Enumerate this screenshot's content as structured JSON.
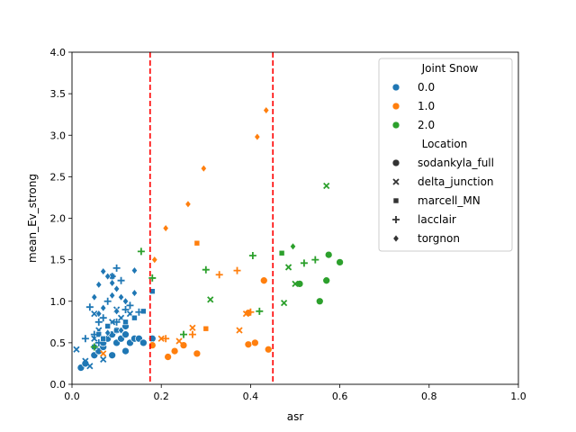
{
  "chart_data": {
    "type": "scatter",
    "xlabel": "asr",
    "ylabel": "mean_Ev_strong",
    "xlim": [
      0.0,
      1.0
    ],
    "ylim": [
      0.0,
      4.0
    ],
    "xticks": [
      "0.0",
      "0.2",
      "0.4",
      "0.6",
      "0.8",
      "1.0"
    ],
    "yticks": [
      "0.0",
      "0.5",
      "1.0",
      "1.5",
      "2.0",
      "2.5",
      "3.0",
      "3.5",
      "4.0"
    ],
    "vlines": [
      {
        "x": 0.175,
        "color": "#ff0000",
        "style": "dashed"
      },
      {
        "x": 0.45,
        "color": "#ff0000",
        "style": "dashed"
      }
    ],
    "legend": {
      "position": "upper right",
      "hue_title": "Joint Snow",
      "hue_entries": [
        {
          "label": "0.0",
          "color": "#1f77b4"
        },
        {
          "label": "1.0",
          "color": "#ff7f0e"
        },
        {
          "label": "2.0",
          "color": "#2ca02c"
        }
      ],
      "style_title": "Location",
      "style_entries": [
        {
          "label": "sodankyla_full",
          "marker": "circle"
        },
        {
          "label": "delta_junction",
          "marker": "x"
        },
        {
          "label": "marcell_MN",
          "marker": "square"
        },
        {
          "label": "lacclair",
          "marker": "plus"
        },
        {
          "label": "torgnon",
          "marker": "diamond"
        }
      ]
    },
    "series": [
      {
        "joint_snow": "0.0",
        "location": "sodankyla_full",
        "points": [
          [
            0.02,
            0.2
          ],
          [
            0.03,
            0.25
          ],
          [
            0.05,
            0.35
          ],
          [
            0.06,
            0.4
          ],
          [
            0.07,
            0.45
          ],
          [
            0.07,
            0.5
          ],
          [
            0.08,
            0.55
          ],
          [
            0.09,
            0.6
          ],
          [
            0.1,
            0.5
          ],
          [
            0.11,
            0.55
          ],
          [
            0.12,
            0.6
          ],
          [
            0.12,
            0.7
          ],
          [
            0.13,
            0.5
          ],
          [
            0.14,
            0.55
          ],
          [
            0.15,
            0.55
          ],
          [
            0.16,
            0.5
          ],
          [
            0.18,
            0.55
          ],
          [
            0.12,
            0.4
          ],
          [
            0.09,
            0.35
          ],
          [
            0.1,
            0.65
          ]
        ]
      },
      {
        "joint_snow": "0.0",
        "location": "delta_junction",
        "points": [
          [
            0.01,
            0.42
          ],
          [
            0.03,
            0.28
          ],
          [
            0.04,
            0.22
          ],
          [
            0.05,
            0.55
          ],
          [
            0.06,
            0.65
          ],
          [
            0.07,
            0.3
          ],
          [
            0.09,
            0.75
          ],
          [
            0.1,
            0.9
          ],
          [
            0.11,
            0.8
          ],
          [
            0.13,
            0.85
          ],
          [
            0.05,
            0.85
          ]
        ]
      },
      {
        "joint_snow": "0.0",
        "location": "marcell_MN",
        "points": [
          [
            0.06,
            0.6
          ],
          [
            0.08,
            0.7
          ],
          [
            0.1,
            0.65
          ],
          [
            0.12,
            0.75
          ],
          [
            0.14,
            0.8
          ],
          [
            0.16,
            0.88
          ],
          [
            0.18,
            1.12
          ],
          [
            0.05,
            0.45
          ],
          [
            0.07,
            0.55
          ],
          [
            0.09,
            1.3
          ]
        ]
      },
      {
        "joint_snow": "0.0",
        "location": "lacclair",
        "points": [
          [
            0.03,
            0.55
          ],
          [
            0.04,
            0.93
          ],
          [
            0.05,
            0.6
          ],
          [
            0.06,
            0.75
          ],
          [
            0.07,
            0.8
          ],
          [
            0.08,
            1.0
          ],
          [
            0.09,
            1.3
          ],
          [
            0.1,
            1.4
          ],
          [
            0.11,
            1.25
          ],
          [
            0.12,
            0.9
          ],
          [
            0.13,
            0.95
          ],
          [
            0.15,
            0.87
          ],
          [
            0.1,
            0.75
          ],
          [
            0.06,
            0.5
          ]
        ]
      },
      {
        "joint_snow": "0.0",
        "location": "torgnon",
        "points": [
          [
            0.05,
            1.05
          ],
          [
            0.06,
            1.2
          ],
          [
            0.07,
            1.36
          ],
          [
            0.08,
            1.3
          ],
          [
            0.09,
            1.22
          ],
          [
            0.1,
            1.15
          ],
          [
            0.11,
            1.05
          ],
          [
            0.12,
            1.0
          ],
          [
            0.14,
            1.1
          ],
          [
            0.14,
            1.37
          ],
          [
            0.07,
            0.92
          ],
          [
            0.09,
            1.07
          ],
          [
            0.11,
            0.65
          ],
          [
            0.06,
            0.85
          ],
          [
            0.08,
            0.62
          ],
          [
            0.1,
            0.88
          ]
        ]
      },
      {
        "joint_snow": "1.0",
        "location": "sodankyla_full",
        "points": [
          [
            0.18,
            0.47
          ],
          [
            0.215,
            0.33
          ],
          [
            0.23,
            0.4
          ],
          [
            0.25,
            0.47
          ],
          [
            0.28,
            0.37
          ],
          [
            0.395,
            0.48
          ],
          [
            0.41,
            0.5
          ],
          [
            0.44,
            0.42
          ],
          [
            0.43,
            1.25
          ],
          [
            0.395,
            0.86
          ]
        ]
      },
      {
        "joint_snow": "1.0",
        "location": "delta_junction",
        "points": [
          [
            0.2,
            0.55
          ],
          [
            0.24,
            0.52
          ],
          [
            0.27,
            0.68
          ],
          [
            0.375,
            0.65
          ],
          [
            0.39,
            0.85
          ],
          [
            0.07,
            0.37
          ]
        ]
      },
      {
        "joint_snow": "1.0",
        "location": "marcell_MN",
        "points": [
          [
            0.28,
            1.7
          ],
          [
            0.3,
            0.67
          ]
        ]
      },
      {
        "joint_snow": "1.0",
        "location": "lacclair",
        "points": [
          [
            0.21,
            0.55
          ],
          [
            0.27,
            0.6
          ],
          [
            0.33,
            1.32
          ],
          [
            0.37,
            1.37
          ],
          [
            0.4,
            0.87
          ]
        ]
      },
      {
        "joint_snow": "1.0",
        "location": "torgnon",
        "points": [
          [
            0.185,
            1.5
          ],
          [
            0.21,
            1.88
          ],
          [
            0.26,
            2.17
          ],
          [
            0.295,
            2.6
          ],
          [
            0.415,
            2.98
          ],
          [
            0.435,
            3.3
          ]
        ]
      },
      {
        "joint_snow": "2.0",
        "location": "sodankyla_full",
        "points": [
          [
            0.51,
            1.21
          ],
          [
            0.555,
            1.0
          ],
          [
            0.57,
            1.25
          ],
          [
            0.575,
            1.56
          ],
          [
            0.6,
            1.47
          ]
        ]
      },
      {
        "joint_snow": "2.0",
        "location": "delta_junction",
        "points": [
          [
            0.31,
            1.02
          ],
          [
            0.475,
            0.98
          ],
          [
            0.485,
            1.41
          ],
          [
            0.5,
            1.21
          ],
          [
            0.57,
            2.39
          ]
        ]
      },
      {
        "joint_snow": "2.0",
        "location": "marcell_MN",
        "points": [
          [
            0.47,
            1.58
          ]
        ]
      },
      {
        "joint_snow": "2.0",
        "location": "lacclair",
        "points": [
          [
            0.155,
            1.6
          ],
          [
            0.18,
            1.28
          ],
          [
            0.3,
            1.38
          ],
          [
            0.405,
            1.55
          ],
          [
            0.42,
            0.88
          ],
          [
            0.52,
            1.46
          ],
          [
            0.545,
            1.5
          ],
          [
            0.25,
            0.6
          ],
          [
            0.05,
            0.45
          ]
        ]
      },
      {
        "joint_snow": "2.0",
        "location": "torgnon",
        "points": [
          [
            0.495,
            1.66
          ]
        ]
      }
    ]
  }
}
